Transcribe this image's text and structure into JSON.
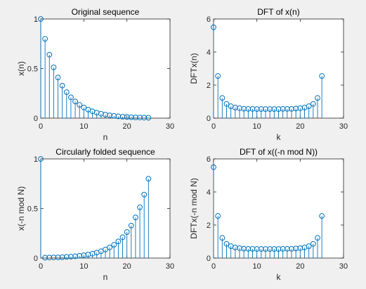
{
  "chart_data": [
    {
      "type": "stem",
      "title": "Original sequence",
      "xlabel": "n",
      "ylabel": "x(n)",
      "xlim": [
        0,
        30
      ],
      "ylim": [
        0,
        1
      ],
      "xticks": [
        "0",
        "10",
        "20",
        "30"
      ],
      "yticks": [
        "0",
        "0.5",
        "1"
      ],
      "x": [
        0,
        1,
        2,
        3,
        4,
        5,
        6,
        7,
        8,
        9,
        10,
        11,
        12,
        13,
        14,
        15,
        16,
        17,
        18,
        19,
        20,
        21,
        22,
        23,
        24,
        25
      ],
      "values": [
        1.0,
        0.8,
        0.64,
        0.512,
        0.41,
        0.328,
        0.262,
        0.21,
        0.168,
        0.134,
        0.107,
        0.086,
        0.069,
        0.055,
        0.044,
        0.035,
        0.028,
        0.023,
        0.018,
        0.014,
        0.012,
        0.009,
        0.007,
        0.006,
        0.005,
        0.004
      ],
      "color": "#0072bd"
    },
    {
      "type": "stem",
      "title": "DFT of x(n)",
      "xlabel": "k",
      "ylabel": "DFTx(n)",
      "xlim": [
        0,
        30
      ],
      "ylim": [
        0,
        6
      ],
      "xticks": [
        "0",
        "10",
        "20",
        "30"
      ],
      "yticks": [
        "0",
        "2",
        "4",
        "6"
      ],
      "x": [
        0,
        1,
        2,
        3,
        4,
        5,
        6,
        7,
        8,
        9,
        10,
        11,
        12,
        13,
        14,
        15,
        16,
        17,
        18,
        19,
        20,
        21,
        22,
        23,
        24,
        25
      ],
      "values": [
        5.5,
        2.55,
        1.22,
        0.86,
        0.72,
        0.64,
        0.6,
        0.57,
        0.56,
        0.56,
        0.55,
        0.55,
        0.55,
        0.55,
        0.55,
        0.55,
        0.56,
        0.56,
        0.56,
        0.58,
        0.6,
        0.64,
        0.72,
        0.86,
        1.22,
        2.55
      ],
      "color": "#0072bd"
    },
    {
      "type": "stem",
      "title": "Circularly folded sequence",
      "xlabel": "n",
      "ylabel": "x(-n mod N)",
      "xlim": [
        0,
        30
      ],
      "ylim": [
        0,
        1
      ],
      "xticks": [
        "0",
        "10",
        "20",
        "30"
      ],
      "yticks": [
        "0",
        "0.5",
        "1"
      ],
      "x": [
        0,
        1,
        2,
        3,
        4,
        5,
        6,
        7,
        8,
        9,
        10,
        11,
        12,
        13,
        14,
        15,
        16,
        17,
        18,
        19,
        20,
        21,
        22,
        23,
        24,
        25
      ],
      "values": [
        1.0,
        0.004,
        0.005,
        0.006,
        0.007,
        0.009,
        0.012,
        0.014,
        0.018,
        0.023,
        0.028,
        0.035,
        0.044,
        0.055,
        0.069,
        0.086,
        0.107,
        0.134,
        0.168,
        0.21,
        0.262,
        0.328,
        0.41,
        0.512,
        0.64,
        0.8
      ],
      "color": "#0072bd"
    },
    {
      "type": "stem",
      "title": "DFT of x((-n mod N))",
      "xlabel": "k",
      "ylabel": "DFTx(-n mod N)",
      "xlim": [
        0,
        30
      ],
      "ylim": [
        0,
        6
      ],
      "xticks": [
        "0",
        "10",
        "20",
        "30"
      ],
      "yticks": [
        "0",
        "2",
        "4",
        "6"
      ],
      "x": [
        0,
        1,
        2,
        3,
        4,
        5,
        6,
        7,
        8,
        9,
        10,
        11,
        12,
        13,
        14,
        15,
        16,
        17,
        18,
        19,
        20,
        21,
        22,
        23,
        24,
        25
      ],
      "values": [
        5.5,
        2.55,
        1.22,
        0.86,
        0.72,
        0.64,
        0.6,
        0.57,
        0.56,
        0.56,
        0.55,
        0.55,
        0.55,
        0.55,
        0.55,
        0.55,
        0.56,
        0.56,
        0.56,
        0.58,
        0.6,
        0.64,
        0.72,
        0.86,
        1.22,
        2.55
      ],
      "color": "#0072bd"
    }
  ]
}
